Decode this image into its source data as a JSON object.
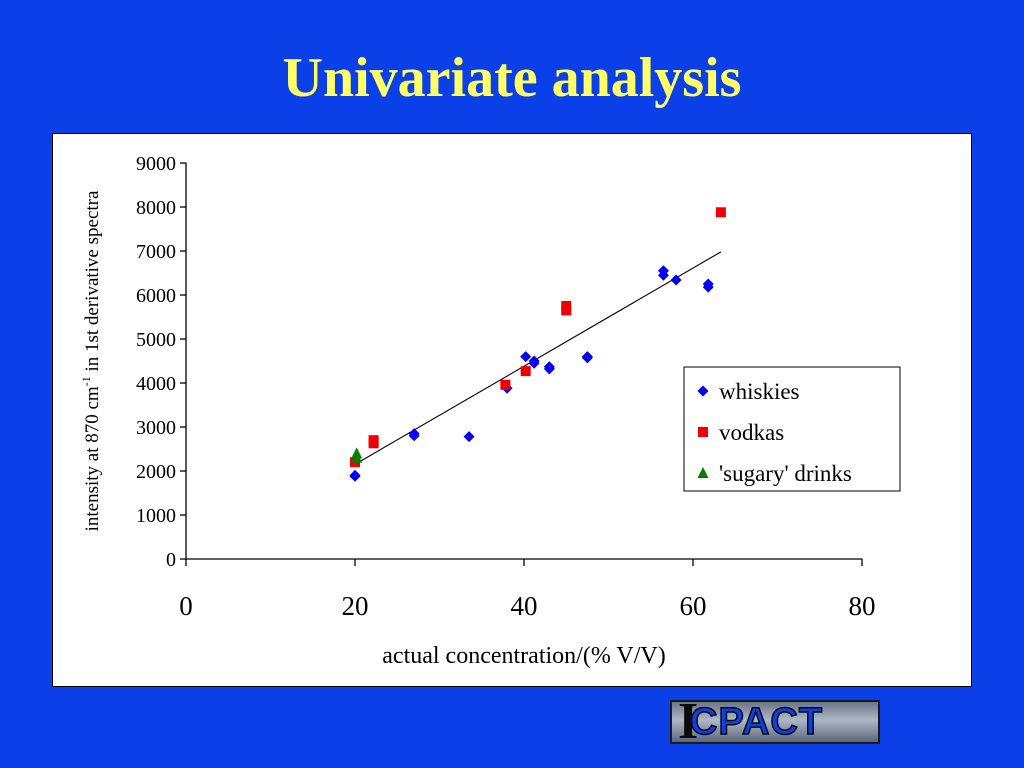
{
  "slide": {
    "title": "Univariate analysis"
  },
  "logo": {
    "mark": "I",
    "text": "CPACT"
  },
  "colors": {
    "background": "#0b3fe8",
    "title": "#ffff66",
    "whiskies": "#0000ee",
    "vodkas": "#ee0000",
    "sugary": "#008000"
  },
  "chart_data": {
    "type": "scatter",
    "xlabel": "actual concentration/(% V/V)",
    "ylabel_parts": {
      "before": "intensity at 870 cm",
      "sup": "-1",
      "after": " in 1st derivative spectra"
    },
    "xlim": [
      0,
      80
    ],
    "ylim": [
      0,
      9000
    ],
    "xticks": [
      "0",
      "20",
      "40",
      "60",
      "80"
    ],
    "yticks": [
      "0",
      "1000",
      "2000",
      "3000",
      "4000",
      "5000",
      "6000",
      "7000",
      "8000",
      "9000"
    ],
    "grid": false,
    "legend_position": "right",
    "series": [
      {
        "name": "whiskies",
        "marker": "diamond",
        "color": "#0000ee",
        "points": [
          [
            20,
            1900
          ],
          [
            20,
            1880
          ],
          [
            27,
            2850
          ],
          [
            27,
            2800
          ],
          [
            33.5,
            2780
          ],
          [
            38,
            3880
          ],
          [
            40.2,
            4600
          ],
          [
            41.2,
            4500
          ],
          [
            41.2,
            4450
          ],
          [
            43,
            4370
          ],
          [
            43,
            4320
          ],
          [
            47.5,
            4600
          ],
          [
            47.5,
            4570
          ],
          [
            56.5,
            6550
          ],
          [
            56.5,
            6450
          ],
          [
            58,
            6340
          ],
          [
            61.8,
            6250
          ],
          [
            61.8,
            6180
          ]
        ]
      },
      {
        "name": "vodkas",
        "marker": "square",
        "color": "#ee0000",
        "points": [
          [
            20,
            2200
          ],
          [
            22.2,
            2700
          ],
          [
            22.2,
            2630
          ],
          [
            37.8,
            3960
          ],
          [
            40.2,
            4270
          ],
          [
            45,
            5750
          ],
          [
            45,
            5650
          ],
          [
            63.3,
            7880
          ]
        ]
      },
      {
        "name": "'sugary' drinks",
        "marker": "triangle",
        "color": "#008000",
        "points": [
          [
            20.2,
            2400
          ],
          [
            20.2,
            2300
          ]
        ]
      }
    ],
    "trendline": {
      "x": [
        20,
        63.3
      ],
      "y": [
        2150,
        6980
      ]
    }
  }
}
